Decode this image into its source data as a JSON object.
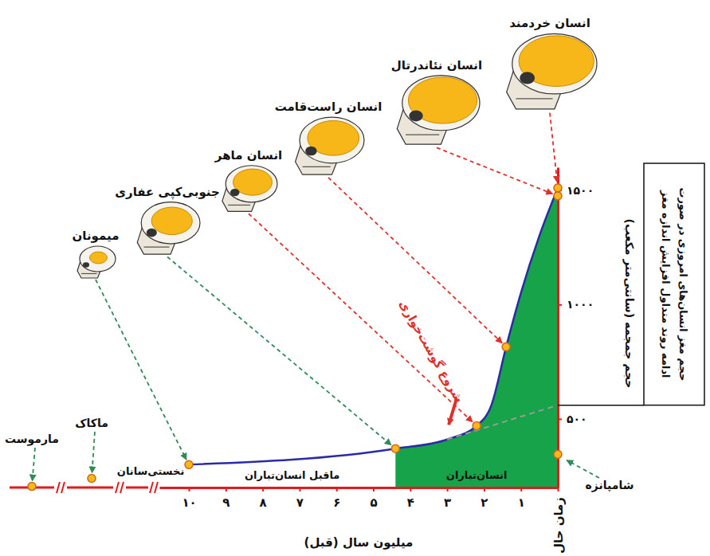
{
  "chart_data": {
    "type": "line",
    "x_label": "میلیون سال (قبل)",
    "y_label": "حجم جمجمه (سانتی‌متر مکعب)",
    "xlim": [
      10.8,
      0
    ],
    "xticks": [
      {
        "value": 10,
        "label": "۱۰"
      },
      {
        "value": 9,
        "label": "۹"
      },
      {
        "value": 8,
        "label": "۸"
      },
      {
        "value": 7,
        "label": "۷"
      },
      {
        "value": 6,
        "label": "۶"
      },
      {
        "value": 5,
        "label": "۵"
      },
      {
        "value": 4,
        "label": "۴"
      },
      {
        "value": 3,
        "label": "۳"
      },
      {
        "value": 2,
        "label": "۲"
      },
      {
        "value": 1,
        "label": "۱"
      },
      {
        "value": 0,
        "label": "زمان حال"
      }
    ],
    "ylim": [
      200,
      1600
    ],
    "yticks": [
      {
        "value": 500,
        "label": "۵۰۰"
      },
      {
        "value": 1000,
        "label": "۱۰۰۰"
      },
      {
        "value": 1500,
        "label": "۱۵۰۰"
      }
    ],
    "color": "#f7b917",
    "marker": "circle",
    "curve": {
      "color": "#2b2ba8",
      "x": [
        10,
        4.4,
        3,
        2.2,
        1.8,
        1.4,
        1,
        0.5,
        0
      ],
      "values": [
        300,
        370,
        410,
        470,
        560,
        815,
        1050,
        1300,
        1510
      ]
    },
    "trend": {
      "color": "#9a9a9a",
      "line_style": "dashed",
      "x": [
        3,
        0
      ],
      "values": [
        410,
        560
      ]
    },
    "trend_note": [
      "حجم مغز انسان‌های امروزی در صورت",
      "ادامه روند متداول افزایش اندازه مغز"
    ],
    "regions": [
      {
        "label": "ماقبل انسان‌تباران",
        "from": 10,
        "to": 4.4
      },
      {
        "label": "انسان‌تباران",
        "from": 4.4,
        "to": 0,
        "color": "#17a34a"
      }
    ],
    "skulls": [
      {
        "label": "میمونان",
        "point_label": "نخستی‌سانان",
        "x": 10,
        "y": 300,
        "color": "#2e8b57"
      },
      {
        "label": "جنوبی‌کپی عفاری",
        "x": 4.4,
        "y": 370,
        "color": "#2e8b57"
      },
      {
        "label": "انسان ماهر",
        "x": 2.2,
        "y": 470,
        "color": "#e0302a"
      },
      {
        "label": "انسان راست‌قامت",
        "x": 1.4,
        "y": 815,
        "color": "#e0302a"
      },
      {
        "label": "انسان نئاندرتال",
        "x": 0,
        "y": 1475,
        "color": "#e0302a"
      },
      {
        "label": "انسان خردمند",
        "x": 0,
        "y": 1510,
        "color": "#e0302a"
      }
    ],
    "points": [
      {
        "label": "شامپانزه",
        "x": 0,
        "y": 345,
        "color": "#2e8b57"
      }
    ],
    "broken_axis_points": [
      {
        "label": "مارموست",
        "y": 205,
        "color": "#2e8b57"
      },
      {
        "label": "ماکاک",
        "y": 240,
        "color": "#2e8b57"
      }
    ],
    "annotations": [
      {
        "text": "شروع گوشت‌خواری",
        "x": 3,
        "y": 430,
        "color": "#e0302a"
      }
    ]
  }
}
